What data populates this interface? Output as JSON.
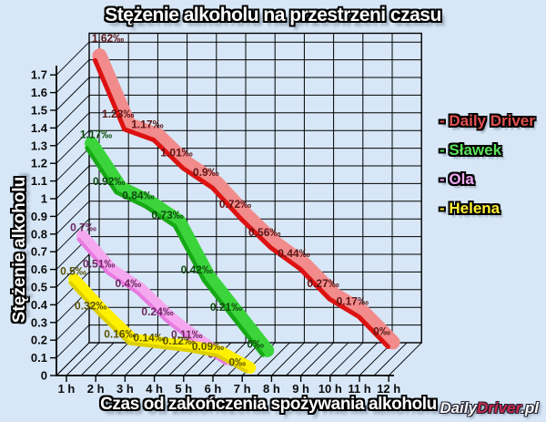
{
  "title": "Stężenie alkoholu na przestrzeni czasu",
  "y_axis_title": "Stężenie alkoholu",
  "x_axis_title": "Czas od zakończenia spożywania alkoholu",
  "watermark": {
    "daily": "Daily",
    "driver": "Driver",
    "pl": ".pl"
  },
  "colors": {
    "background": "#d7e7f7",
    "grid": "#000000",
    "watermark_red": "#c92a4e"
  },
  "chart_data": {
    "type": "line",
    "projection": "3d-oblique",
    "x_unit": "h",
    "x_ticks": [
      "1 h",
      "2 h",
      "3 h",
      "4 h",
      "5 h",
      "6 h",
      "7 h",
      "8 h",
      "9 h",
      "10 h",
      "11 h",
      "12 h"
    ],
    "y_ticks": [
      "0",
      "0.1",
      "0.2",
      "0.3",
      "0.4",
      "0.5",
      "0.6",
      "0.7",
      "0.8",
      "0.9",
      "1",
      "1.1",
      "1.2",
      "1.3",
      "1.4",
      "1.5",
      "1.6",
      "1.7"
    ],
    "xlim_hours": [
      1,
      12
    ],
    "ylim": [
      0,
      1.75
    ],
    "grid": true,
    "legend_position": "right",
    "legend": [
      {
        "label": "- Daily Driver",
        "color": "#e25050"
      },
      {
        "label": "- Sławek",
        "color": "#5de05d"
      },
      {
        "label": "- Ola",
        "color": "#f2aaf2"
      },
      {
        "label": "- Helena",
        "color": "#ffee33"
      }
    ],
    "series": [
      {
        "name": "Daily Driver",
        "band_color": "#f28b8b",
        "line_color": "#dd1111",
        "label_color": "#5c1414",
        "hours": [
          1,
          2,
          3,
          4,
          5,
          6,
          7,
          8,
          9,
          10,
          11
        ],
        "values": [
          1.62,
          1.23,
          1.17,
          1.01,
          0.9,
          0.72,
          0.56,
          0.44,
          0.27,
          0.17,
          0
        ],
        "labels": [
          "1.62‰",
          "1.23‰",
          "1.17‰",
          "1.01‰",
          "0.9‰",
          "0.72‰",
          "0.56‰",
          "0.44‰",
          "0.27‰",
          "0.17‰",
          "0‰"
        ]
      },
      {
        "name": "Sławek",
        "band_color": "#3bd43b",
        "line_color": "#17a817",
        "label_color": "#0e4a0e",
        "hours": [
          1,
          2,
          3,
          4,
          5,
          6,
          7
        ],
        "values": [
          1.17,
          0.92,
          0.84,
          0.73,
          0.42,
          0.21,
          0
        ],
        "labels": [
          "1.17‰",
          "0.92‰",
          "0.84‰",
          "0.73‰",
          "0.42‰",
          "0.21‰",
          "0‰"
        ]
      },
      {
        "name": "Ola",
        "band_color": "#f5a8ef",
        "line_color": "#e87ae0",
        "label_color": "#6b2760",
        "hours": [
          1,
          2,
          3,
          4,
          5,
          6
        ],
        "values": [
          0.7,
          0.51,
          0.4,
          0.24,
          0.11,
          0
        ],
        "labels": [
          "0.7‰",
          "0.51‰",
          "0.4‰",
          "0.24‰",
          "0.11‰",
          "0‰"
        ]
      },
      {
        "name": "Helena",
        "band_color": "#fff000",
        "line_color": "#ddcf00",
        "label_color": "#5a5200",
        "hours": [
          1,
          2,
          3,
          4,
          5,
          6,
          7
        ],
        "values": [
          0.5,
          0.32,
          0.16,
          0.14,
          0.12,
          0.09,
          0
        ],
        "labels": [
          "0.5‰",
          "0.32‰",
          "0.16‰",
          "0.14‰",
          "0.12‰",
          "0.09‰",
          "0‰"
        ]
      }
    ]
  }
}
